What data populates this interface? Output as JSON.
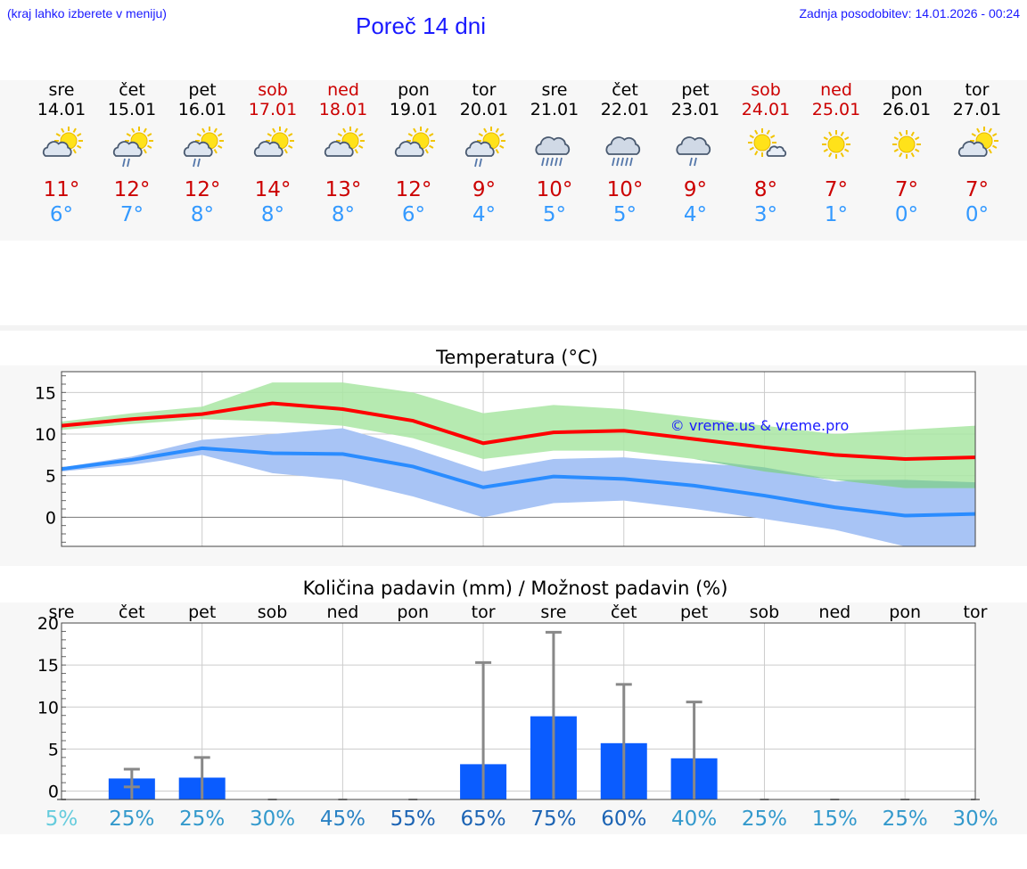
{
  "header": {
    "menu_hint": "(kraj lahko izberete v meniju)",
    "title": "Poreč 14 dni",
    "updated": "Zadnja posodobitev: 14.01.2026 - 00:24"
  },
  "colors": {
    "link": "#1a1aff",
    "weekend": "#cc0000",
    "tmax": "#cc0000",
    "tmin": "#3399ff",
    "max_line": "#ff0000",
    "min_line": "#2a8cff",
    "max_band": "#a9e6a3",
    "min_band": "#a8c4f5",
    "overlap_band": "#7cc59f",
    "bar": "#0a5cff",
    "whisker": "#888888"
  },
  "forecast": [
    {
      "day": "sre",
      "date": "14.01",
      "weekend": false,
      "icon": "partly-cloudy-icon",
      "tmax": "11°",
      "tmin": "6°"
    },
    {
      "day": "čet",
      "date": "15.01",
      "weekend": false,
      "icon": "partly-cloudy-light-rain-icon",
      "tmax": "12°",
      "tmin": "7°"
    },
    {
      "day": "pet",
      "date": "16.01",
      "weekend": false,
      "icon": "partly-cloudy-light-rain-icon",
      "tmax": "12°",
      "tmin": "8°"
    },
    {
      "day": "sob",
      "date": "17.01",
      "weekend": true,
      "icon": "partly-cloudy-icon",
      "tmax": "14°",
      "tmin": "8°"
    },
    {
      "day": "ned",
      "date": "18.01",
      "weekend": true,
      "icon": "partly-cloudy-icon",
      "tmax": "13°",
      "tmin": "8°"
    },
    {
      "day": "pon",
      "date": "19.01",
      "weekend": false,
      "icon": "partly-cloudy-icon",
      "tmax": "12°",
      "tmin": "6°"
    },
    {
      "day": "tor",
      "date": "20.01",
      "weekend": false,
      "icon": "partly-cloudy-light-rain-icon",
      "tmax": "9°",
      "tmin": "4°"
    },
    {
      "day": "sre",
      "date": "21.01",
      "weekend": false,
      "icon": "cloudy-rain-icon",
      "tmax": "10°",
      "tmin": "5°"
    },
    {
      "day": "čet",
      "date": "22.01",
      "weekend": false,
      "icon": "cloudy-rain-icon",
      "tmax": "10°",
      "tmin": "5°"
    },
    {
      "day": "pet",
      "date": "23.01",
      "weekend": false,
      "icon": "cloudy-light-rain-icon",
      "tmax": "9°",
      "tmin": "4°"
    },
    {
      "day": "sob",
      "date": "24.01",
      "weekend": true,
      "icon": "sun-small-cloud-icon",
      "tmax": "8°",
      "tmin": "3°"
    },
    {
      "day": "ned",
      "date": "25.01",
      "weekend": true,
      "icon": "sun-icon",
      "tmax": "7°",
      "tmin": "1°"
    },
    {
      "day": "pon",
      "date": "26.01",
      "weekend": false,
      "icon": "sun-icon",
      "tmax": "7°",
      "tmin": "0°"
    },
    {
      "day": "tor",
      "date": "27.01",
      "weekend": false,
      "icon": "partly-cloudy-icon",
      "tmax": "7°",
      "tmin": "0°"
    }
  ],
  "chart_data": [
    {
      "type": "line",
      "title": "Temperatura (°C)",
      "watermark": "© vreme.us & vreme.pro",
      "xlabel": "",
      "ylabel": "",
      "ylim": [
        -3.5,
        17.5
      ],
      "yticks": [
        0,
        5,
        10,
        15
      ],
      "grid": true,
      "x": [
        0,
        1,
        2,
        3,
        4,
        5,
        6,
        7,
        8,
        9,
        10,
        11,
        12,
        13
      ],
      "series": [
        {
          "name": "max",
          "values": [
            11.0,
            11.8,
            12.4,
            13.7,
            13.0,
            11.6,
            8.9,
            10.2,
            10.4,
            9.4,
            8.4,
            7.5,
            7.0,
            7.2
          ]
        },
        {
          "name": "min",
          "values": [
            5.8,
            6.9,
            8.3,
            7.7,
            7.6,
            6.1,
            3.6,
            4.9,
            4.6,
            3.8,
            2.6,
            1.2,
            0.2,
            0.4
          ]
        }
      ],
      "bands": [
        {
          "name": "max_range",
          "low": [
            10.5,
            11.2,
            11.8,
            11.5,
            11.0,
            9.5,
            7.0,
            8.0,
            8.0,
            7.0,
            5.5,
            4.5,
            3.5,
            3.5
          ],
          "high": [
            11.5,
            12.5,
            13.3,
            16.2,
            16.2,
            15.0,
            12.5,
            13.5,
            13.0,
            12.0,
            11.0,
            10.0,
            10.5,
            11.0
          ]
        },
        {
          "name": "min_range",
          "low": [
            5.5,
            6.3,
            7.5,
            5.3,
            4.5,
            2.5,
            0.0,
            1.7,
            2.0,
            1.0,
            -0.2,
            -1.5,
            -3.5,
            -3.5
          ],
          "high": [
            6.0,
            7.3,
            9.3,
            10.0,
            10.7,
            8.3,
            5.5,
            7.0,
            7.2,
            6.5,
            6.0,
            4.3,
            4.5,
            4.2
          ]
        }
      ]
    },
    {
      "type": "bar",
      "title": "Količina padavin (mm) / Možnost padavin (%)",
      "categories": [
        "sre",
        "čet",
        "pet",
        "sob",
        "ned",
        "pon",
        "tor",
        "sre",
        "čet",
        "pet",
        "sob",
        "ned",
        "pon",
        "tor"
      ],
      "ylim": [
        -1,
        20
      ],
      "yticks": [
        0,
        5,
        10,
        15,
        20
      ],
      "grid": true,
      "values": [
        0.0,
        1.5,
        1.6,
        0.0,
        0.0,
        0.0,
        3.2,
        8.9,
        5.7,
        3.9,
        0.0,
        0.0,
        0.0,
        0.0
      ],
      "err_low": [
        0.0,
        0.5,
        0.0,
        0.0,
        0.0,
        0.0,
        0.0,
        0.0,
        0.0,
        0.0,
        0.0,
        0.0,
        0.0,
        0.0
      ],
      "err_high": [
        0.0,
        2.6,
        4.0,
        0.0,
        0.0,
        0.0,
        15.3,
        18.9,
        12.7,
        10.6,
        0.0,
        0.0,
        0.0,
        0.0
      ],
      "probability": [
        "5%",
        "25%",
        "25%",
        "30%",
        "45%",
        "55%",
        "65%",
        "75%",
        "60%",
        "40%",
        "25%",
        "15%",
        "25%",
        "30%"
      ],
      "probability_colors": [
        "#66ccdd",
        "#3399cc",
        "#3399cc",
        "#3399cc",
        "#2a82c4",
        "#1c64b4",
        "#1c64b4",
        "#1c64b4",
        "#1c64b4",
        "#3399cc",
        "#3399cc",
        "#3399cc",
        "#3399cc",
        "#3399cc"
      ]
    }
  ]
}
